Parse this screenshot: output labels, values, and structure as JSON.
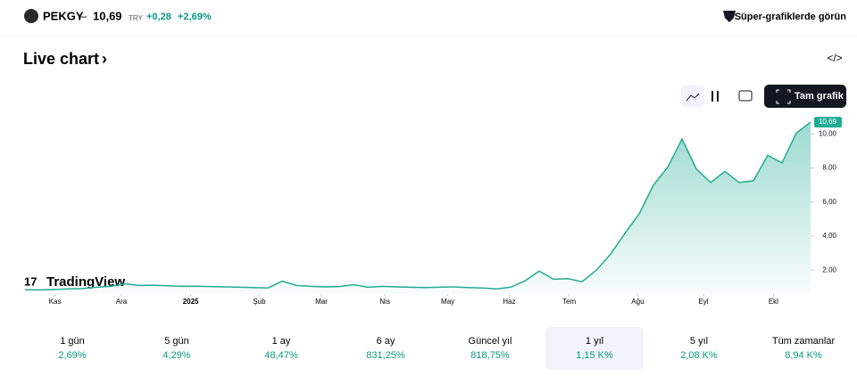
{
  "header": {
    "symbol": "PEKGY",
    "price": "10,69",
    "currency": "TRY",
    "change": "+0,28",
    "change_pct": "+2,69%",
    "super_link": "Süper-grafiklerde görün"
  },
  "section_title": "Live chart",
  "full_chart": "Tam grafik",
  "brand": "TradingView",
  "chart_data": {
    "type": "area",
    "color": "#22ab94",
    "x": [
      0,
      1,
      2,
      3,
      4,
      5,
      6,
      7,
      8,
      9,
      10,
      11,
      12,
      13,
      14,
      15,
      16,
      17,
      18,
      19,
      20,
      21,
      22,
      23,
      24,
      25,
      26,
      27,
      28,
      29,
      30,
      31,
      32,
      33,
      34,
      35,
      36,
      37,
      38,
      39,
      40,
      41,
      42,
      43,
      44,
      45,
      46,
      47,
      48,
      49,
      50,
      51,
      52,
      53,
      54,
      55
    ],
    "values": [
      0.85,
      0.84,
      0.86,
      0.9,
      0.92,
      1.0,
      1.05,
      1.2,
      1.1,
      1.12,
      1.08,
      1.05,
      1.06,
      1.04,
      1.02,
      1.0,
      0.98,
      0.95,
      1.35,
      1.1,
      1.05,
      1.02,
      1.04,
      1.15,
      1.0,
      1.05,
      1.02,
      1.0,
      0.98,
      1.0,
      1.02,
      0.98,
      0.95,
      0.9,
      1.0,
      1.37,
      1.95,
      1.47,
      1.5,
      1.32,
      2.0,
      2.95,
      4.16,
      5.3,
      7.0,
      8.05,
      9.7,
      7.95,
      7.15,
      7.8,
      7.15,
      7.25,
      8.75,
      8.3,
      10.05,
      10.69
    ],
    "last_label": "10,69",
    "xlim": [
      0,
      55
    ],
    "xticks": [
      {
        "value": 2.1,
        "label": "Kas"
      },
      {
        "value": 6.75,
        "label": "Ara"
      },
      {
        "value": 11.6,
        "label": "2025"
      },
      {
        "value": 16.4,
        "label": "Şub"
      },
      {
        "value": 20.75,
        "label": "Mar"
      },
      {
        "value": 25.2,
        "label": "Nis"
      },
      {
        "value": 29.6,
        "label": "May"
      },
      {
        "value": 33.9,
        "label": "Haz"
      },
      {
        "value": 38.1,
        "label": "Tem"
      },
      {
        "value": 42.9,
        "label": "Ağu"
      },
      {
        "value": 47.5,
        "label": "Eyl"
      },
      {
        "value": 52.4,
        "label": "Ekl"
      }
    ],
    "ylim": [
      0.6,
      10.8
    ],
    "yticks": [
      {
        "value": 2,
        "label": "2,00"
      },
      {
        "value": 4,
        "label": "4,00"
      },
      {
        "value": 6,
        "label": "6,00"
      },
      {
        "value": 8,
        "label": "8,00"
      },
      {
        "value": 10,
        "label": "10,00"
      }
    ]
  },
  "periods": [
    {
      "label": "1 gün",
      "change": "2,69%"
    },
    {
      "label": "5 gün",
      "change": "4,29%"
    },
    {
      "label": "1 ay",
      "change": "48,47%"
    },
    {
      "label": "6 ay",
      "change": "831,25%"
    },
    {
      "label": "Güncel yıl",
      "change": "818,75%"
    },
    {
      "label": "1 yıl",
      "change": "1,15 K%",
      "selected": true
    },
    {
      "label": "5 yıl",
      "change": "2,08 K%"
    },
    {
      "label": "Tüm zamanlar",
      "change": "8,94 K%"
    }
  ]
}
